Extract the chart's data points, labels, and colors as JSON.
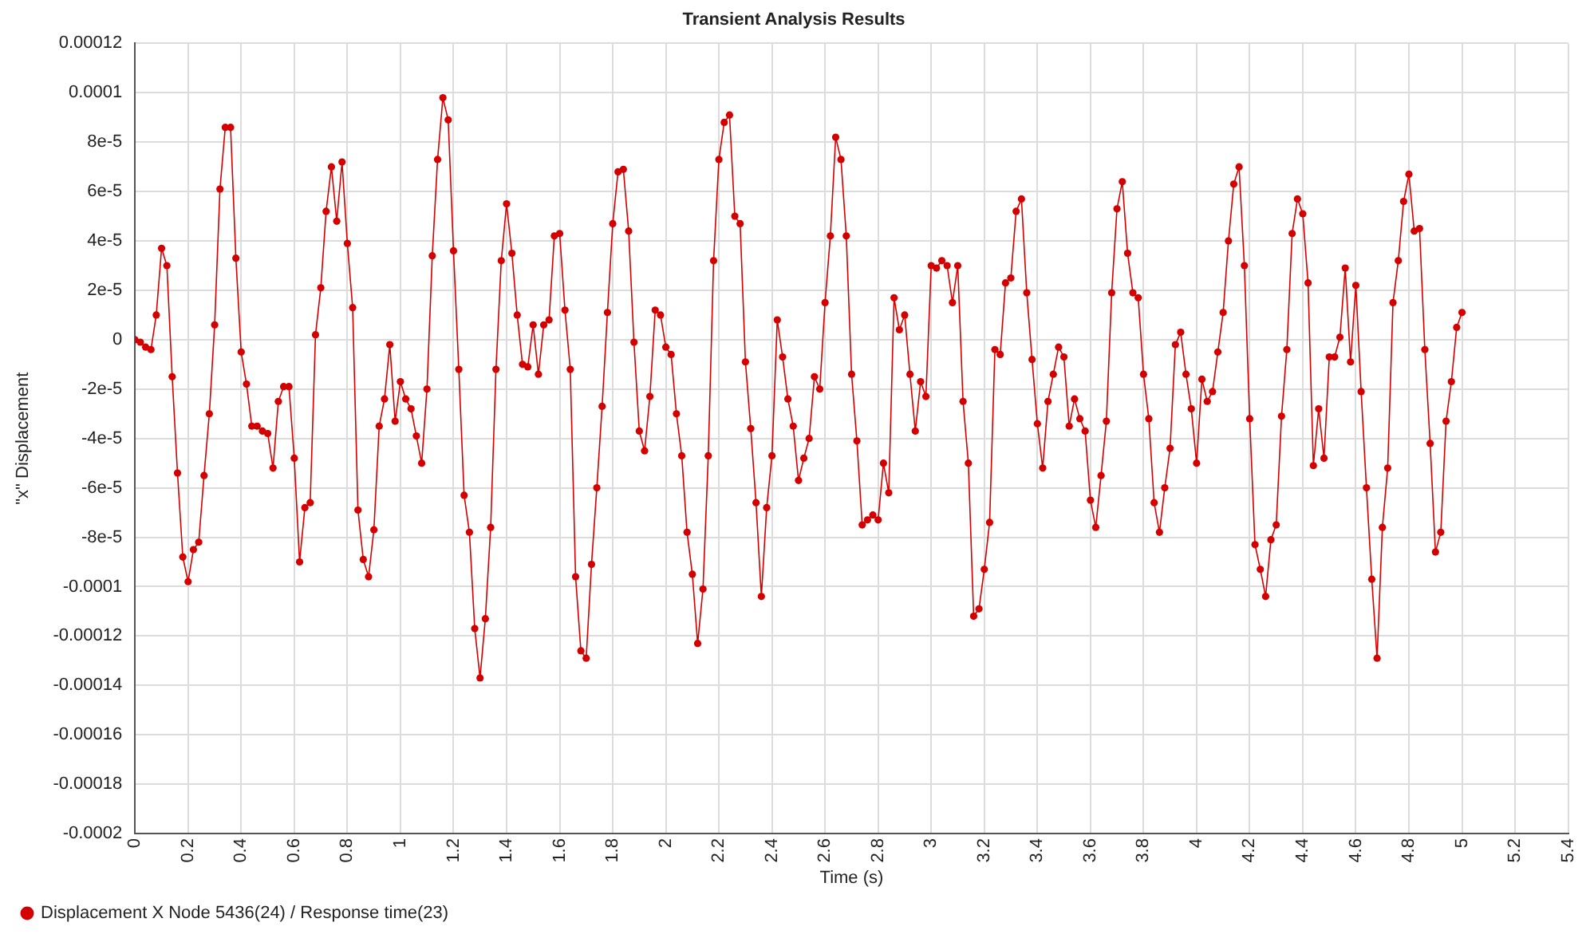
{
  "chart_data": {
    "type": "line",
    "title": "Transient Analysis Results",
    "xlabel": "Time (s)",
    "ylabel": "\"x\" Displacement",
    "x": [
      0,
      0.02,
      0.04,
      0.06,
      0.08,
      0.1,
      0.12,
      0.14,
      0.16,
      0.18,
      0.2,
      0.22,
      0.24,
      0.26,
      0.28,
      0.3,
      0.32,
      0.34,
      0.36,
      0.38,
      0.4,
      0.42,
      0.44,
      0.46,
      0.48,
      0.5,
      0.52,
      0.54,
      0.56,
      0.58,
      0.6,
      0.62,
      0.64,
      0.66,
      0.68,
      0.7,
      0.72,
      0.74,
      0.76,
      0.78,
      0.8,
      0.82,
      0.84,
      0.86,
      0.88,
      0.9,
      0.92,
      0.94,
      0.96,
      0.98,
      1,
      1.02,
      1.04,
      1.06,
      1.08,
      1.1,
      1.12,
      1.14,
      1.16,
      1.18,
      1.2,
      1.22,
      1.24,
      1.26,
      1.28,
      1.3,
      1.32,
      1.34,
      1.36,
      1.38,
      1.4,
      1.42,
      1.44,
      1.46,
      1.48,
      1.5,
      1.52,
      1.54,
      1.56,
      1.58,
      1.6,
      1.62,
      1.64,
      1.66,
      1.68,
      1.7,
      1.72,
      1.74,
      1.76,
      1.78,
      1.8,
      1.82,
      1.84,
      1.86,
      1.88,
      1.9,
      1.92,
      1.94,
      1.96,
      1.98,
      2,
      2.02,
      2.04,
      2.06,
      2.08,
      2.1,
      2.12,
      2.14,
      2.16,
      2.18,
      2.2,
      2.22,
      2.24,
      2.26,
      2.28,
      2.3,
      2.32,
      2.34,
      2.36,
      2.38,
      2.4,
      2.42,
      2.44,
      2.46,
      2.48,
      2.5,
      2.52,
      2.54,
      2.56,
      2.58,
      2.6,
      2.62,
      2.64,
      2.66,
      2.68,
      2.7,
      2.72,
      2.74,
      2.76,
      2.78,
      2.8,
      2.82,
      2.84,
      2.86,
      2.88,
      2.9,
      2.92,
      2.94,
      2.96,
      2.98,
      3,
      3.02,
      3.04,
      3.06,
      3.08,
      3.1,
      3.12,
      3.14,
      3.16,
      3.18,
      3.2,
      3.22,
      3.24,
      3.26,
      3.28,
      3.3,
      3.32,
      3.34,
      3.36,
      3.38,
      3.4,
      3.42,
      3.44,
      3.46,
      3.48,
      3.5,
      3.52,
      3.54,
      3.56,
      3.58,
      3.6,
      3.62,
      3.64,
      3.66,
      3.68,
      3.7,
      3.72,
      3.74,
      3.76,
      3.78,
      3.8,
      3.82,
      3.84,
      3.86,
      3.88,
      3.9,
      3.92,
      3.94,
      3.96,
      3.98,
      4,
      4.02,
      4.04,
      4.06,
      4.08,
      4.1,
      4.12,
      4.14,
      4.16,
      4.18,
      4.2,
      4.22,
      4.24,
      4.26,
      4.28,
      4.3,
      4.32,
      4.34,
      4.36,
      4.38,
      4.4,
      4.42,
      4.44,
      4.46,
      4.48,
      4.5,
      4.52,
      4.54,
      4.56,
      4.58,
      4.6,
      4.62,
      4.64,
      4.66,
      4.68,
      4.7,
      4.72,
      4.74,
      4.76,
      4.78,
      4.8,
      4.82,
      4.84,
      4.86,
      4.88,
      4.9,
      4.92,
      4.94,
      4.96,
      4.98,
      5
    ],
    "series": [
      {
        "name": "Displacement X Node 5436(24) / Response time(23)",
        "color": "#d40000",
        "values": [
          0,
          -1e-06,
          -3e-06,
          -4e-06,
          1e-05,
          3.7e-05,
          3e-05,
          -1.5e-05,
          -5.4e-05,
          -8.8e-05,
          -9.8e-05,
          -8.5e-05,
          -8.2e-05,
          -5.5e-05,
          -3e-05,
          6e-06,
          6.1e-05,
          8.6e-05,
          8.6e-05,
          3.3e-05,
          -5e-06,
          -1.8e-05,
          -3.5e-05,
          -3.5e-05,
          -3.7e-05,
          -3.8e-05,
          -5.2e-05,
          -2.5e-05,
          -1.9e-05,
          -1.9e-05,
          -4.8e-05,
          -9e-05,
          -6.8e-05,
          -6.6e-05,
          2e-06,
          2.1e-05,
          5.2e-05,
          7e-05,
          4.8e-05,
          7.2e-05,
          3.9e-05,
          1.3e-05,
          -6.9e-05,
          -8.9e-05,
          -9.6e-05,
          -7.7e-05,
          -3.5e-05,
          -2.4e-05,
          -2e-06,
          -3.3e-05,
          -1.7e-05,
          -2.4e-05,
          -2.8e-05,
          -3.9e-05,
          -5e-05,
          -2e-05,
          3.4e-05,
          7.3e-05,
          9.8e-05,
          8.9e-05,
          3.6e-05,
          -1.2e-05,
          -6.3e-05,
          -7.8e-05,
          -0.000117,
          -0.000137,
          -0.000113,
          -7.6e-05,
          -1.2e-05,
          3.2e-05,
          5.5e-05,
          3.5e-05,
          1e-05,
          -1e-05,
          -1.1e-05,
          6e-06,
          -1.4e-05,
          6e-06,
          8e-06,
          4.2e-05,
          4.3e-05,
          1.2e-05,
          -1.2e-05,
          -9.6e-05,
          -0.000126,
          -0.000129,
          -9.1e-05,
          -6e-05,
          -2.7e-05,
          1.1e-05,
          4.7e-05,
          6.8e-05,
          6.9e-05,
          4.4e-05,
          -1e-06,
          -3.7e-05,
          -4.5e-05,
          -2.3e-05,
          1.2e-05,
          1e-05,
          -3e-06,
          -6e-06,
          -3e-05,
          -4.7e-05,
          -7.8e-05,
          -9.5e-05,
          -0.000123,
          -0.000101,
          -4.7e-05,
          3.2e-05,
          7.3e-05,
          8.8e-05,
          9.1e-05,
          5e-05,
          4.7e-05,
          -9e-06,
          -3.6e-05,
          -6.6e-05,
          -0.000104,
          -6.8e-05,
          -4.7e-05,
          8e-06,
          -7e-06,
          -2.4e-05,
          -3.5e-05,
          -5.7e-05,
          -4.8e-05,
          -4e-05,
          -1.5e-05,
          -2e-05,
          1.5e-05,
          4.2e-05,
          8.2e-05,
          7.3e-05,
          4.2e-05,
          -1.4e-05,
          -4.1e-05,
          -7.5e-05,
          -7.3e-05,
          -7.1e-05,
          -7.3e-05,
          -5e-05,
          -6.2e-05,
          1.7e-05,
          4e-06,
          1e-05,
          -1.4e-05,
          -3.7e-05,
          -1.7e-05,
          -2.3e-05,
          3e-05,
          2.9e-05,
          3.2e-05,
          3e-05,
          1.5e-05,
          3e-05,
          -2.5e-05,
          -5e-05,
          -0.000112,
          -0.000109,
          -9.3e-05,
          -7.4e-05,
          -4e-06,
          -6e-06,
          2.3e-05,
          2.5e-05,
          5.2e-05,
          5.7e-05,
          1.9e-05,
          -8e-06,
          -3.4e-05,
          -5.2e-05,
          -2.5e-05,
          -1.4e-05,
          -3e-06,
          -7e-06,
          -3.5e-05,
          -2.4e-05,
          -3.2e-05,
          -3.7e-05,
          -6.5e-05,
          -7.6e-05,
          -5.5e-05,
          -3.3e-05,
          1.9e-05,
          5.3e-05,
          6.4e-05,
          3.5e-05,
          1.9e-05,
          1.7e-05,
          -1.4e-05,
          -3.2e-05,
          -6.6e-05,
          -7.8e-05,
          -6e-05,
          -4.4e-05,
          -2e-06,
          3e-06,
          -1.4e-05,
          -2.8e-05,
          -5e-05,
          -1.6e-05,
          -2.5e-05,
          -2.1e-05,
          -5e-06,
          1.1e-05,
          4e-05,
          6.3e-05,
          7e-05,
          3e-05,
          -3.2e-05,
          -8.3e-05,
          -9.3e-05,
          -0.000104,
          -8.1e-05,
          -7.5e-05,
          -3.1e-05,
          -4e-06,
          4.3e-05,
          5.7e-05,
          5.1e-05,
          2.3e-05,
          -5.1e-05,
          -2.8e-05,
          -4.8e-05,
          -7e-06,
          -7e-06,
          1e-06,
          2.9e-05,
          -9e-06,
          2.2e-05,
          -2.1e-05,
          -6e-05,
          -9.7e-05,
          -0.000129,
          -7.6e-05,
          -5.2e-05,
          1.5e-05,
          3.2e-05,
          5.6e-05,
          6.7e-05,
          4.4e-05,
          4.5e-05,
          -4e-06,
          -4.2e-05,
          -8.6e-05,
          -7.8e-05,
          -3.3e-05,
          -1.7e-05,
          5e-06,
          1.1e-05
        ]
      }
    ],
    "xlim": [
      0,
      5.4
    ],
    "xticks": [
      0,
      0.2,
      0.4,
      0.6,
      0.8,
      1,
      1.2,
      1.4,
      1.6,
      1.8,
      2,
      2.2,
      2.4,
      2.6,
      2.8,
      3,
      3.2,
      3.4,
      3.6,
      3.8,
      4,
      4.2,
      4.4,
      4.6,
      4.8,
      5,
      5.2,
      5.4
    ],
    "ylim": [
      -0.0002,
      0.00012
    ],
    "yticks": [
      0.00012,
      0.0001,
      {
        "value": 8e-05,
        "label": "8e-5"
      },
      {
        "value": 6e-05,
        "label": "6e-5"
      },
      {
        "value": 4e-05,
        "label": "4e-5"
      },
      {
        "value": 2e-05,
        "label": "2e-5"
      },
      0,
      {
        "value": -2e-05,
        "label": "-2e-5"
      },
      {
        "value": -4e-05,
        "label": "-4e-5"
      },
      {
        "value": -6e-05,
        "label": "-6e-5"
      },
      {
        "value": -8e-05,
        "label": "-8e-5"
      },
      -0.0001,
      -0.00012,
      -0.00014,
      -0.00016,
      -0.00018,
      -0.0002
    ],
    "grid": true,
    "legend": "bottom left",
    "marker": "circle",
    "line_style": "solid"
  }
}
